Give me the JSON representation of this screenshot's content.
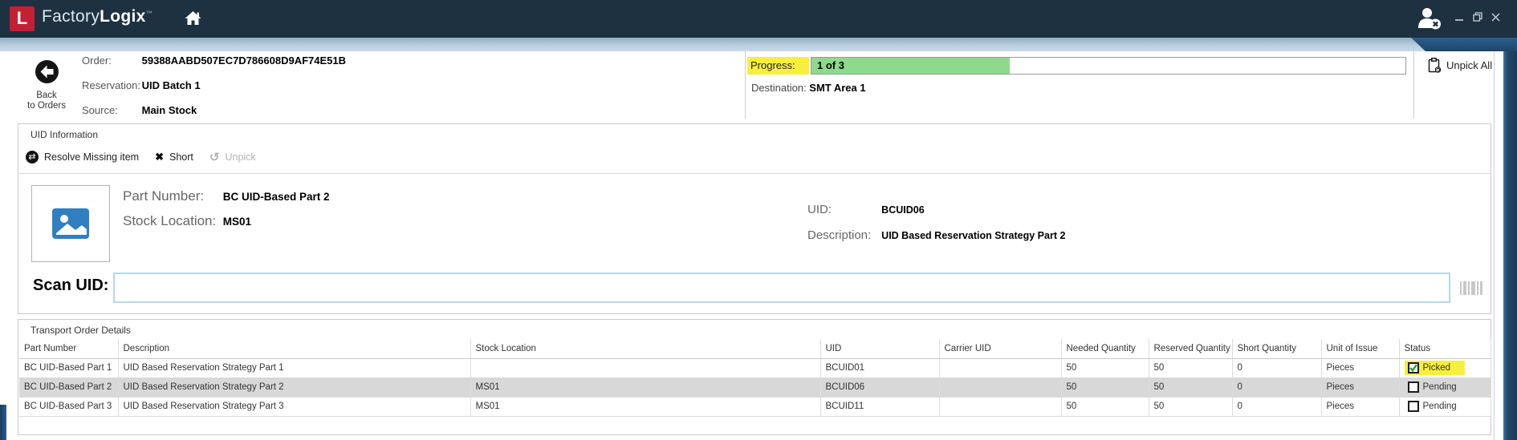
{
  "window": {
    "brand": {
      "factory": "Factory",
      "logix": "Logix",
      "tm": "™",
      "logo_letter": "L"
    },
    "icons": [
      "factorylogix-logo",
      "home-icon",
      "user-logout-icon",
      "minimize-icon",
      "restore-icon",
      "close-icon",
      "back-icon",
      "unpick-all-icon",
      "resolve-icon",
      "short-icon",
      "unpick-icon",
      "image-placeholder-icon",
      "barcode-icon",
      "picked-checkbox",
      "pending-checkbox"
    ]
  },
  "header": {
    "back": {
      "line1": "Back",
      "line2": "to Orders"
    },
    "fields": [
      {
        "label": "Order:",
        "value": "59388AABD507EC7D786608D9AF74E51B"
      },
      {
        "label": "Reservation:",
        "value": "UID Batch 1"
      },
      {
        "label": "Source:",
        "value": "Main Stock"
      }
    ],
    "progress": {
      "label": "Progress:",
      "text": "1 of 3",
      "percent": 33.4
    },
    "destination": {
      "label": "Destination:",
      "value": "SMT Area 1"
    },
    "unpick_all_label": "Unpick All"
  },
  "uid_info": {
    "title": "UID Information",
    "toolbar": [
      {
        "label": "Resolve Missing item",
        "enabled": true
      },
      {
        "label": "Short",
        "enabled": true
      },
      {
        "label": "Unpick",
        "enabled": false
      }
    ],
    "part": {
      "part_number_label": "Part Number:",
      "part_number": "BC UID-Based Part 2",
      "stock_location_label": "Stock Location:",
      "stock_location": "MS01",
      "uid_label": "UID:",
      "uid": "BCUID06",
      "description_label": "Description:",
      "description": "UID Based Reservation Strategy Part 2"
    },
    "scan": {
      "label": "Scan UID:",
      "value": "",
      "placeholder": ""
    }
  },
  "transport": {
    "title": "Transport Order Details",
    "columns": [
      "Part Number",
      "Description",
      "Stock Location",
      "UID",
      "Carrier UID",
      "Needed Quantity",
      "Reserved Quantity",
      "Short Quantity",
      "Unit of Issue",
      "Status"
    ],
    "rows": [
      {
        "part_number": "BC UID-Based Part 1",
        "description": "UID Based Reservation Strategy Part 1",
        "stock_location": "",
        "uid": "BCUID01",
        "carrier_uid": "",
        "needed": "50",
        "reserved": "50",
        "short": "0",
        "unit": "Pieces",
        "status": "Picked",
        "picked": true,
        "selected": false
      },
      {
        "part_number": "BC UID-Based Part 2",
        "description": "UID Based Reservation Strategy Part 2",
        "stock_location": "MS01",
        "uid": "BCUID06",
        "carrier_uid": "",
        "needed": "50",
        "reserved": "50",
        "short": "0",
        "unit": "Pieces",
        "status": "Pending",
        "picked": false,
        "selected": true
      },
      {
        "part_number": "BC UID-Based Part 3",
        "description": "UID Based Reservation Strategy Part 3",
        "stock_location": "MS01",
        "uid": "BCUID11",
        "carrier_uid": "",
        "needed": "50",
        "reserved": "50",
        "short": "0",
        "unit": "Pieces",
        "status": "Pending",
        "picked": false,
        "selected": false
      }
    ]
  },
  "colors": {
    "titlebar_bg": "#1d3141",
    "logo_red": "#c41f33",
    "highlight_yellow": "#f7ef3e",
    "progress_green": "#8fd98c",
    "selected_row_gray": "#d8d8d8",
    "check_green": "#2f9e2f"
  }
}
